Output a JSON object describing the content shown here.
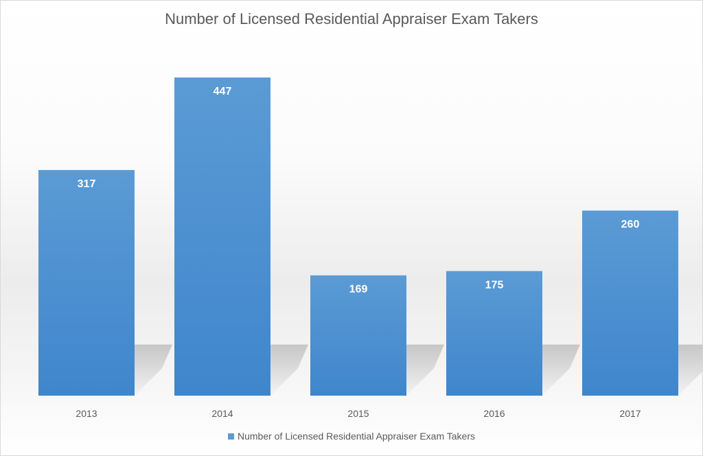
{
  "chart_data": {
    "type": "bar",
    "title": "Number of Licensed Residential Appraiser Exam Takers",
    "categories": [
      "2013",
      "2014",
      "2015",
      "2016",
      "2017"
    ],
    "series": [
      {
        "name": "Number of Licensed Residential Appraiser Exam Takers",
        "values": [
          317,
          447,
          169,
          175,
          260
        ]
      }
    ],
    "data_labels": [
      "317",
      "447",
      "169",
      "175",
      "260"
    ],
    "ylim": [
      0,
      447
    ],
    "grid": false,
    "legend_position": "bottom",
    "colors": {
      "bar_top": "#5B9BD5",
      "bar_bottom": "#3F86CC",
      "label": "#ffffff",
      "axis_text": "#595959"
    }
  }
}
